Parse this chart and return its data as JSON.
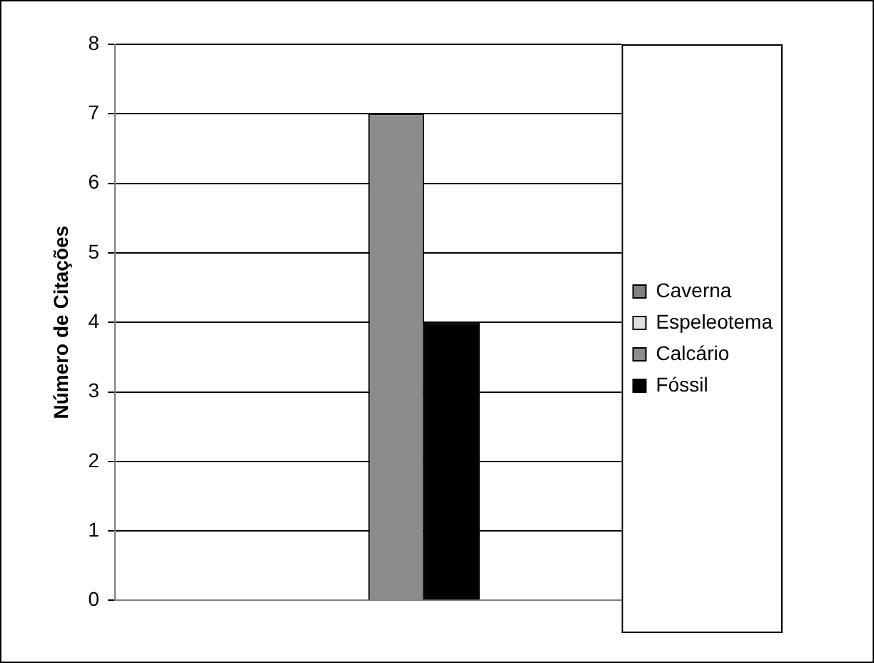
{
  "chart_data": {
    "type": "bar",
    "ylabel": "Número de Citações",
    "categories": [
      null
    ],
    "series": [
      {
        "name": "Caverna",
        "color": "#808080",
        "values": [
          0
        ]
      },
      {
        "name": "Espeleotema",
        "color": "#e0e0e0",
        "values": [
          0
        ]
      },
      {
        "name": "Calcário",
        "color": "#8c8c8c",
        "values": [
          7
        ]
      },
      {
        "name": "Fóssil",
        "color": "#000000",
        "values": [
          4
        ]
      }
    ],
    "ylim": [
      0,
      8
    ],
    "yticks": [
      0,
      1,
      2,
      3,
      4,
      5,
      6,
      7,
      8
    ],
    "grid": "y",
    "legend": "right"
  }
}
